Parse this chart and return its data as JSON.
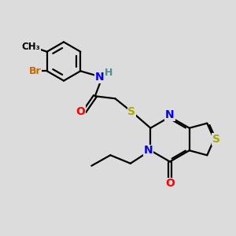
{
  "background_color": "#dcdcdc",
  "bond_color": "#000000",
  "atom_colors": {
    "N": "#0000ff",
    "S": "#aaaa00",
    "O": "#ff0000",
    "Br": "#cc6600",
    "H": "#4a9090",
    "C": "#000000"
  },
  "figsize": [
    3.0,
    3.0
  ],
  "dpi": 100
}
